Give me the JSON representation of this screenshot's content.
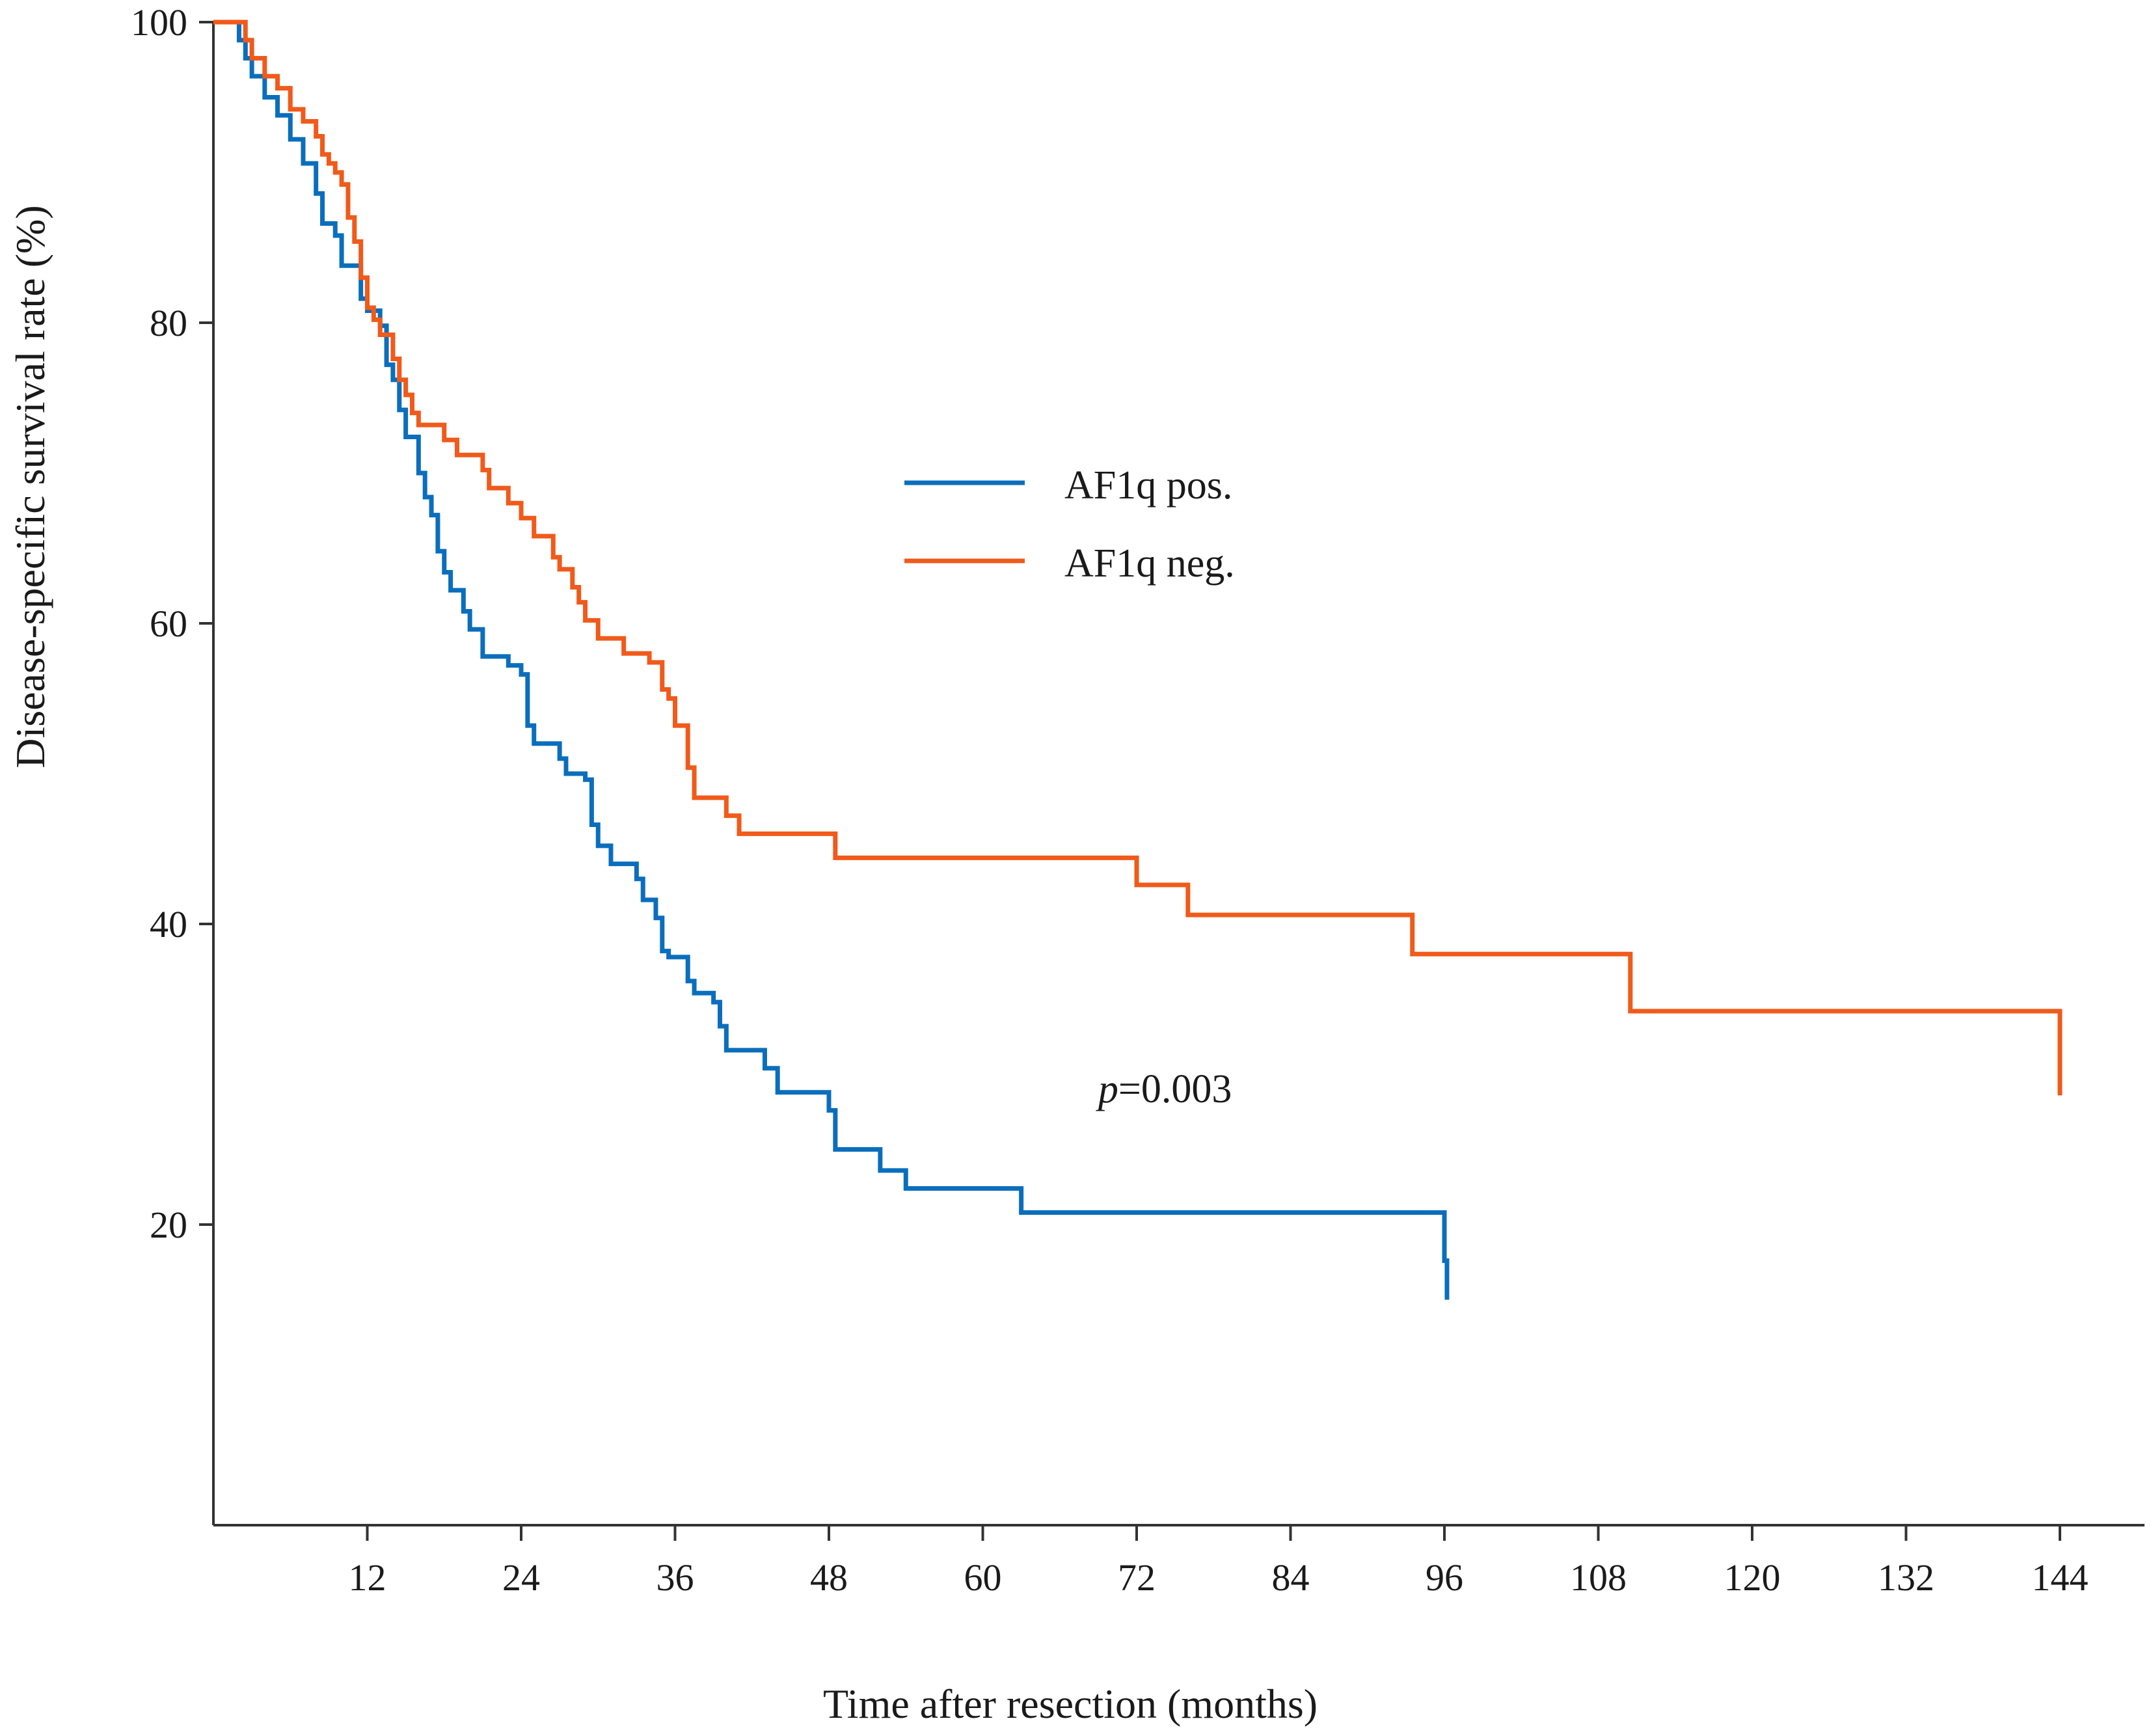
{
  "chart_data": {
    "type": "line",
    "subtype": "kaplan-meier-step",
    "xlabel": "Time after resection (months)",
    "ylabel": "Disease-specific survival rate (%)",
    "xlim": [
      0,
      150
    ],
    "ylim": [
      0,
      100
    ],
    "x_ticks": [
      12,
      24,
      36,
      48,
      60,
      72,
      84,
      96,
      108,
      120,
      132,
      144
    ],
    "y_ticks": [
      20,
      40,
      60,
      80,
      100
    ],
    "legend": {
      "placement": "center",
      "entries": [
        "AF1q pos.",
        "AF1q neg."
      ]
    },
    "annotation": {
      "italic": "p",
      "text": "=0.003",
      "x": 69,
      "y": 29
    },
    "series": [
      {
        "name": "AF1q pos.",
        "color": "#0A6EBD",
        "points": [
          [
            0,
            100
          ],
          [
            1.5,
            100
          ],
          [
            2,
            98.8
          ],
          [
            2.5,
            97.6
          ],
          [
            3,
            96.4
          ],
          [
            4,
            95
          ],
          [
            5,
            93.8
          ],
          [
            6,
            92.2
          ],
          [
            7,
            90.6
          ],
          [
            8,
            88.6
          ],
          [
            8.5,
            86.6
          ],
          [
            9.5,
            85.8
          ],
          [
            10,
            83.8
          ],
          [
            11,
            83.8
          ],
          [
            11.5,
            81.6
          ],
          [
            12,
            80.8
          ],
          [
            13,
            79.8
          ],
          [
            13.5,
            77.2
          ],
          [
            14,
            76.2
          ],
          [
            14.5,
            74.2
          ],
          [
            15,
            72.4
          ],
          [
            16,
            70
          ],
          [
            16.5,
            68.4
          ],
          [
            17,
            67.2
          ],
          [
            17.5,
            64.8
          ],
          [
            18,
            63.4
          ],
          [
            18.5,
            62.2
          ],
          [
            19.5,
            60.8
          ],
          [
            20,
            59.6
          ],
          [
            21,
            57.8
          ],
          [
            23,
            57.2
          ],
          [
            24,
            56.6
          ],
          [
            24.5,
            53.2
          ],
          [
            25,
            52
          ],
          [
            27,
            51
          ],
          [
            27.5,
            50
          ],
          [
            29,
            49.6
          ],
          [
            29.5,
            46.6
          ],
          [
            30,
            45.2
          ],
          [
            31,
            44
          ],
          [
            33,
            43
          ],
          [
            33.5,
            41.6
          ],
          [
            34.5,
            40.4
          ],
          [
            35,
            38.2
          ],
          [
            35.5,
            37.8
          ],
          [
            37,
            36.2
          ],
          [
            37.5,
            35.4
          ],
          [
            39,
            34.8
          ],
          [
            39.5,
            33.2
          ],
          [
            40,
            31.6
          ],
          [
            43,
            30.4
          ],
          [
            44,
            28.8
          ],
          [
            48,
            27.6
          ],
          [
            48.5,
            25
          ],
          [
            52,
            23.6
          ],
          [
            54,
            22.4
          ],
          [
            63,
            20.8
          ],
          [
            96,
            20.8
          ],
          [
            96,
            17.6
          ],
          [
            96.2,
            15
          ]
        ]
      },
      {
        "name": "AF1q neg.",
        "color": "#F05A1A",
        "points": [
          [
            0,
            100
          ],
          [
            2,
            100
          ],
          [
            2.5,
            98.8
          ],
          [
            3,
            97.6
          ],
          [
            4,
            96.4
          ],
          [
            5,
            95.6
          ],
          [
            6,
            94.2
          ],
          [
            7,
            93.4
          ],
          [
            8,
            92.4
          ],
          [
            8.5,
            91.2
          ],
          [
            9,
            90.6
          ],
          [
            9.5,
            90
          ],
          [
            10,
            89.2
          ],
          [
            10.5,
            87
          ],
          [
            11,
            85.4
          ],
          [
            11.5,
            83
          ],
          [
            12,
            81
          ],
          [
            12.5,
            80.2
          ],
          [
            13,
            79.2
          ],
          [
            14,
            77.6
          ],
          [
            14.5,
            76.2
          ],
          [
            15,
            75.2
          ],
          [
            15.5,
            74
          ],
          [
            16,
            73.2
          ],
          [
            18,
            72.2
          ],
          [
            19,
            71.2
          ],
          [
            21,
            70.2
          ],
          [
            21.5,
            69
          ],
          [
            23,
            68
          ],
          [
            24,
            67
          ],
          [
            25,
            65.8
          ],
          [
            26.5,
            64.4
          ],
          [
            27,
            63.6
          ],
          [
            28,
            62.4
          ],
          [
            28.5,
            61.4
          ],
          [
            29,
            60.2
          ],
          [
            30,
            59
          ],
          [
            32,
            58
          ],
          [
            34,
            57.4
          ],
          [
            35,
            55.6
          ],
          [
            35.5,
            55
          ],
          [
            36,
            53.2
          ],
          [
            37,
            50.4
          ],
          [
            37.5,
            48.4
          ],
          [
            40,
            47.2
          ],
          [
            41,
            46
          ],
          [
            48,
            46
          ],
          [
            48.5,
            44.4
          ],
          [
            71.5,
            44.4
          ],
          [
            72,
            42.6
          ],
          [
            76,
            40.6
          ],
          [
            93,
            40.6
          ],
          [
            93.5,
            38
          ],
          [
            110,
            38
          ],
          [
            110.5,
            34.2
          ],
          [
            144,
            34.2
          ],
          [
            144,
            28.6
          ]
        ]
      }
    ]
  }
}
